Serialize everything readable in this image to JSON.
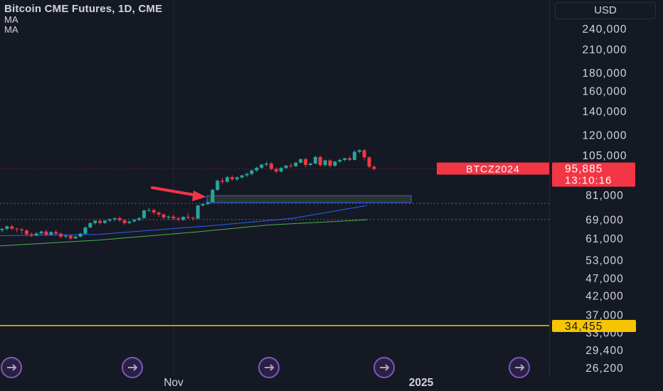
{
  "legend": {
    "title": "Bitcoin CME Futures, 1D, CME",
    "ma_labels": [
      "MA",
      "MA"
    ]
  },
  "currency_button": "USD",
  "price_axis_ticks": [
    "240,000",
    "210,000",
    "180,000",
    "160,000",
    "140,000",
    "120,000",
    "105,000",
    "81,000",
    "69,000",
    "61,000",
    "53,000",
    "47,000",
    "42,000",
    "37,000",
    "33,000",
    "29,400",
    "26,200"
  ],
  "time_axis_ticks": [
    "Nov",
    "2025"
  ],
  "symbol_tag": {
    "label": "BTCZ2024",
    "price": "95,885",
    "countdown": "13:10:16"
  },
  "horizontal_level": {
    "price_label": "34,455"
  },
  "colors": {
    "background": "#151924",
    "up_candle": "#26a69a",
    "down_candle": "#f23645",
    "ma_blue": "#2962ff",
    "ma_green": "#4caf50",
    "level_line": "#f7c500",
    "arrow": "#f23645",
    "event_icon": "#7e57c2"
  },
  "icons": [
    "event-arrow-icon"
  ],
  "chart_data": {
    "type": "candlestick",
    "title": "Bitcoin CME Futures, 1D, CME",
    "scale": "log",
    "ylim": [
      26200,
      240000
    ],
    "x_ticks": [
      "Nov",
      "2025"
    ],
    "y_ticks": [
      240000,
      210000,
      180000,
      160000,
      140000,
      120000,
      105000,
      81000,
      69000,
      61000,
      53000,
      47000,
      42000,
      37000,
      33000,
      29400,
      26200
    ],
    "candles": [
      [
        64300,
        65100,
        64800,
        63300
      ],
      [
        64800,
        66300,
        65900,
        64200
      ],
      [
        65900,
        66500,
        64900,
        64300
      ],
      [
        64900,
        65300,
        64600,
        63400
      ],
      [
        64600,
        65100,
        64200,
        62700
      ],
      [
        64200,
        64600,
        62600,
        61800
      ],
      [
        62600,
        63300,
        62100,
        61300
      ],
      [
        62100,
        63400,
        62900,
        61700
      ],
      [
        62900,
        64200,
        63700,
        62300
      ],
      [
        63700,
        64500,
        62400,
        61800
      ],
      [
        62400,
        63800,
        63500,
        62000
      ],
      [
        63500,
        64400,
        62800,
        62300
      ],
      [
        62800,
        63300,
        61600,
        60900
      ],
      [
        61600,
        62500,
        62000,
        61100
      ],
      [
        62000,
        62400,
        60900,
        60300
      ],
      [
        60900,
        61900,
        61600,
        60700
      ],
      [
        61600,
        63200,
        62800,
        61300
      ],
      [
        62800,
        65900,
        65400,
        62600
      ],
      [
        65400,
        67700,
        67300,
        65100
      ],
      [
        67300,
        68800,
        68300,
        66600
      ],
      [
        68300,
        69200,
        67400,
        66700
      ],
      [
        67400,
        68600,
        68400,
        66900
      ],
      [
        68400,
        69400,
        68900,
        67800
      ],
      [
        68900,
        69700,
        69500,
        68100
      ],
      [
        69500,
        70200,
        68600,
        67900
      ],
      [
        68600,
        69000,
        67300,
        66600
      ],
      [
        67300,
        68200,
        68000,
        66900
      ],
      [
        68000,
        69300,
        68700,
        67700
      ],
      [
        68700,
        70000,
        69500,
        68200
      ],
      [
        69500,
        73500,
        73100,
        69300
      ],
      [
        73100,
        74300,
        73300,
        72600
      ],
      [
        73300,
        74000,
        72100,
        71100
      ],
      [
        72100,
        72800,
        71200,
        70100
      ],
      [
        71200,
        71700,
        69800,
        69000
      ],
      [
        69800,
        70700,
        70200,
        68700
      ],
      [
        70200,
        71100,
        69400,
        68600
      ],
      [
        69400,
        70100,
        68800,
        68000
      ],
      [
        68800,
        70300,
        70100,
        68200
      ],
      [
        70100,
        71900,
        69700,
        69200
      ],
      [
        69700,
        70200,
        69300,
        68400
      ],
      [
        69300,
        76000,
        75500,
        69000
      ],
      [
        75500,
        76800,
        76200,
        75000
      ],
      [
        76200,
        77600,
        77000,
        75700
      ],
      [
        77200,
        84200,
        83600,
        76800
      ],
      [
        83600,
        89500,
        88800,
        83000
      ],
      [
        88800,
        90600,
        88200,
        86900
      ],
      [
        88200,
        91700,
        90800,
        87600
      ],
      [
        90800,
        92000,
        89600,
        88700
      ],
      [
        89600,
        91300,
        90700,
        88600
      ],
      [
        90700,
        92300,
        91900,
        89900
      ],
      [
        91900,
        93600,
        92800,
        90900
      ],
      [
        92800,
        95500,
        94900,
        92000
      ],
      [
        94900,
        97400,
        96600,
        94100
      ],
      [
        96600,
        99200,
        98600,
        95800
      ],
      [
        98600,
        100500,
        99300,
        97500
      ],
      [
        99300,
        100200,
        95900,
        95000
      ],
      [
        95900,
        96900,
        94300,
        93200
      ],
      [
        94300,
        97000,
        96500,
        93600
      ],
      [
        96500,
        98400,
        98000,
        95900
      ],
      [
        98000,
        99600,
        97600,
        96600
      ],
      [
        97600,
        100300,
        99900,
        97000
      ],
      [
        99900,
        102800,
        102200,
        99400
      ],
      [
        102200,
        103100,
        98400,
        96900
      ],
      [
        98400,
        99900,
        99300,
        97600
      ],
      [
        99300,
        104400,
        103600,
        98800
      ],
      [
        103600,
        104700,
        98300,
        97300
      ],
      [
        98300,
        101800,
        101400,
        97500
      ],
      [
        101400,
        102100,
        97900,
        96800
      ],
      [
        97900,
        101000,
        100600,
        97100
      ],
      [
        100600,
        102400,
        101700,
        99800
      ],
      [
        101700,
        103100,
        102800,
        100900
      ],
      [
        102800,
        104000,
        101700,
        100800
      ],
      [
        101700,
        108400,
        107200,
        101300
      ],
      [
        107200,
        109000,
        108300,
        106200
      ],
      [
        108300,
        109200,
        103400,
        101400
      ],
      [
        103400,
        103900,
        97300,
        96300
      ],
      [
        97300,
        98300,
        95900,
        94800
      ]
    ],
    "moving_averages": [
      {
        "color": "blue",
        "points": [
          [
            0,
            62000
          ],
          [
            20,
            62500
          ],
          [
            45,
            66500
          ],
          [
            60,
            69500
          ],
          [
            75,
            75500
          ]
        ]
      },
      {
        "color": "green",
        "points": [
          [
            0,
            58000
          ],
          [
            20,
            60200
          ],
          [
            40,
            63500
          ],
          [
            55,
            66500
          ],
          [
            75,
            68800
          ]
        ]
      }
    ],
    "reference_lines": [
      76500,
      68900
    ],
    "highlight_zone": [
      77000,
      80500
    ],
    "horizontal_level": 34455,
    "last_price": 95885
  }
}
